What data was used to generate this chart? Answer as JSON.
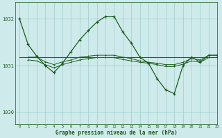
{
  "background_color": "#ceeaea",
  "grid_color": "#9ecece",
  "line_color": "#1a5c1a",
  "title": "Graphe pression niveau de la mer (hPa)",
  "xlim": [
    -0.5,
    23
  ],
  "ylim": [
    1029.75,
    1032.35
  ],
  "yticks": [
    1030,
    1031,
    1032
  ],
  "xticks": [
    0,
    1,
    2,
    3,
    4,
    5,
    6,
    7,
    8,
    9,
    10,
    11,
    12,
    13,
    14,
    15,
    16,
    17,
    18,
    19,
    20,
    21,
    22,
    23
  ],
  "series": [
    {
      "x": [
        0,
        1,
        2,
        3,
        4,
        5,
        6,
        7,
        8,
        9,
        10,
        11,
        12,
        13,
        14,
        15,
        16,
        17,
        18,
        19,
        20,
        21,
        22,
        23
      ],
      "y": [
        1032.0,
        1031.45,
        1031.2,
        1031.0,
        1030.85,
        1031.05,
        1031.3,
        1031.55,
        1031.75,
        1031.93,
        1032.05,
        1032.05,
        1031.72,
        1031.48,
        1031.18,
        1031.05,
        1030.72,
        1030.48,
        1030.4,
        1031.0,
        1031.18,
        1031.08,
        1031.22,
        1031.22
      ],
      "marker": true
    },
    {
      "x": [
        0,
        1,
        2,
        3,
        4,
        5,
        6,
        7,
        8,
        9,
        10,
        11,
        12,
        13,
        14,
        15,
        16,
        17,
        18,
        19,
        20,
        21,
        22,
        23
      ],
      "y": [
        1031.18,
        1031.18,
        1031.18,
        1031.18,
        1031.18,
        1031.18,
        1031.18,
        1031.18,
        1031.18,
        1031.18,
        1031.18,
        1031.18,
        1031.18,
        1031.18,
        1031.18,
        1031.18,
        1031.18,
        1031.18,
        1031.18,
        1031.18,
        1031.18,
        1031.18,
        1031.18,
        1031.18
      ],
      "marker": false
    },
    {
      "x": [
        1,
        2,
        3,
        4,
        5,
        6,
        7,
        8,
        9,
        10,
        11,
        12,
        13,
        14,
        15,
        16,
        17,
        18,
        19,
        20,
        21,
        22,
        23
      ],
      "y": [
        1031.18,
        1031.18,
        1031.08,
        1031.02,
        1031.08,
        1031.12,
        1031.18,
        1031.2,
        1031.22,
        1031.22,
        1031.22,
        1031.18,
        1031.15,
        1031.1,
        1031.07,
        1031.05,
        1031.02,
        1031.02,
        1031.07,
        1031.15,
        1031.12,
        1031.22,
        1031.22
      ],
      "marker": true
    },
    {
      "x": [
        1,
        2,
        3,
        4,
        5,
        6,
        7,
        8,
        9,
        10,
        11,
        12,
        13,
        14,
        15,
        16,
        17,
        18,
        19,
        20,
        21,
        22,
        23
      ],
      "y": [
        1031.12,
        1031.1,
        1031.02,
        1030.95,
        1031.02,
        1031.07,
        1031.12,
        1031.15,
        1031.17,
        1031.17,
        1031.17,
        1031.13,
        1031.1,
        1031.07,
        1031.05,
        1031.02,
        1030.98,
        1030.98,
        1031.03,
        1031.1,
        1031.07,
        1031.17,
        1031.17
      ],
      "marker": true
    }
  ]
}
